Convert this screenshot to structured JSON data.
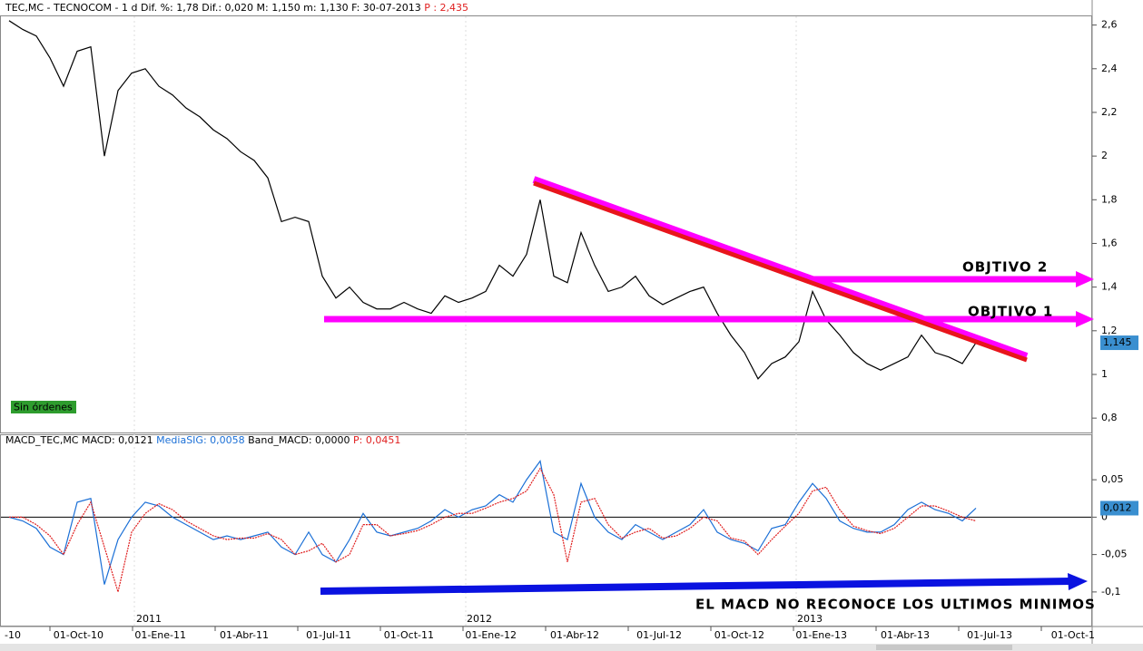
{
  "header": {
    "price_readout": "TEC,MC - TECNOCOM -  1 d Dif. %: 1,78 Dif.: 0,020 M: 1,150 m: 1,130 F: 30-07-2013",
    "price_p": "P : 2,435",
    "macd_readout": "MACD_TEC,MC MACD: 0,0121",
    "macd_sig": "MediaSIG: 0,0058",
    "macd_band": "Band_MACD: 0,0000",
    "macd_p": "P: 0,0451"
  },
  "badge": "Sin órdenes",
  "annotations": {
    "target2": "OBJTIVO 2",
    "target1": "OBJTIVO 1",
    "macd_note": "EL MACD NO RECONOCE LOS ULTIMOS MINIMOS"
  },
  "x_labels": [
    "-10",
    "01-Oct-10",
    "01-Ene-11",
    "01-Abr-11",
    "01-Jul-11",
    "01-Oct-11",
    "01-Ene-12",
    "01-Abr-12",
    "01-Jul-12",
    "01-Oct-12",
    "01-Ene-13",
    "01-Abr-13",
    "01-Jul-13",
    "01-Oct-1"
  ],
  "year_labels": [
    "2011",
    "2012",
    "2013"
  ],
  "chart_data": [
    {
      "type": "line",
      "series": [
        {
          "color": "#000000",
          "values": [
            2.62,
            2.58,
            2.55,
            2.45,
            2.32,
            2.48,
            2.5,
            2.0,
            2.3,
            2.38,
            2.4,
            2.32,
            2.28,
            2.22,
            2.18,
            2.12,
            2.08,
            2.02,
            1.98,
            1.9,
            1.7,
            1.72,
            1.7,
            1.45,
            1.35,
            1.4,
            1.33,
            1.3,
            1.3,
            1.33,
            1.3,
            1.28,
            1.36,
            1.33,
            1.35,
            1.38,
            1.5,
            1.45,
            1.55,
            1.8,
            1.45,
            1.42,
            1.65,
            1.5,
            1.38,
            1.4,
            1.45,
            1.36,
            1.32,
            1.35,
            1.38,
            1.4,
            1.28,
            1.18,
            1.1,
            0.98,
            1.05,
            1.08,
            1.15,
            1.38,
            1.25,
            1.18,
            1.1,
            1.05,
            1.02,
            1.05,
            1.08,
            1.18,
            1.1,
            1.08,
            1.05,
            1.145
          ]
        }
      ],
      "ylim": [
        0.73,
        2.64
      ],
      "yticks": [
        {
          "value": 2.6,
          "label": "2,6"
        },
        {
          "value": 2.4,
          "label": "2,4"
        },
        {
          "value": 2.2,
          "label": "2,2"
        },
        2,
        {
          "value": 1.8,
          "label": "1,8"
        },
        {
          "value": 1.6,
          "label": "1,6"
        },
        {
          "value": 1.4,
          "label": "1,4"
        },
        {
          "value": 1.2,
          "label": "1,2"
        },
        1,
        {
          "value": 0.8,
          "label": "0,8"
        }
      ],
      "last_value": {
        "value": 1.145,
        "label": "1,145"
      }
    },
    {
      "type": "line",
      "series": [
        {
          "color": "#1a6fd6",
          "values": [
            0.0,
            -0.005,
            -0.015,
            -0.04,
            -0.05,
            0.02,
            0.025,
            -0.09,
            -0.03,
            0.0,
            0.02,
            0.015,
            0.0,
            -0.01,
            -0.02,
            -0.03,
            -0.025,
            -0.03,
            -0.025,
            -0.02,
            -0.04,
            -0.05,
            -0.02,
            -0.05,
            -0.06,
            -0.03,
            0.005,
            -0.02,
            -0.025,
            -0.02,
            -0.015,
            -0.005,
            0.01,
            0.0,
            0.01,
            0.015,
            0.03,
            0.02,
            0.05,
            0.075,
            -0.02,
            -0.03,
            0.045,
            0.0,
            -0.02,
            -0.03,
            -0.01,
            -0.02,
            -0.03,
            -0.02,
            -0.01,
            0.01,
            -0.02,
            -0.03,
            -0.035,
            -0.045,
            -0.015,
            -0.01,
            0.02,
            0.045,
            0.025,
            -0.005,
            -0.015,
            -0.02,
            -0.02,
            -0.01,
            0.01,
            0.02,
            0.01,
            0.005,
            -0.005,
            0.012
          ]
        },
        {
          "color": "#e02020",
          "values": [
            0.0,
            0.0,
            -0.01,
            -0.025,
            -0.05,
            -0.01,
            0.02,
            -0.04,
            -0.1,
            -0.02,
            0.005,
            0.018,
            0.01,
            -0.005,
            -0.015,
            -0.025,
            -0.03,
            -0.028,
            -0.028,
            -0.022,
            -0.03,
            -0.05,
            -0.045,
            -0.035,
            -0.06,
            -0.05,
            -0.01,
            -0.01,
            -0.025,
            -0.022,
            -0.018,
            -0.01,
            0.0,
            0.005,
            0.005,
            0.012,
            0.02,
            0.025,
            0.035,
            0.065,
            0.03,
            -0.06,
            0.02,
            0.025,
            -0.01,
            -0.028,
            -0.02,
            -0.015,
            -0.028,
            -0.025,
            -0.015,
            0.0,
            -0.005,
            -0.028,
            -0.032,
            -0.05,
            -0.03,
            -0.012,
            0.005,
            0.035,
            0.04,
            0.01,
            -0.012,
            -0.018,
            -0.022,
            -0.015,
            0.0,
            0.015,
            0.015,
            0.008,
            0.0,
            -0.005
          ]
        }
      ],
      "ylim": [
        -0.145,
        0.095
      ],
      "yticks": [
        {
          "value": 0.05,
          "label": "0,05"
        },
        0,
        {
          "value": -0.05,
          "label": "-0,05"
        },
        {
          "value": -0.1,
          "label": "-0,1"
        }
      ],
      "last_value": {
        "value": 0.012,
        "label": "0,012"
      }
    }
  ]
}
